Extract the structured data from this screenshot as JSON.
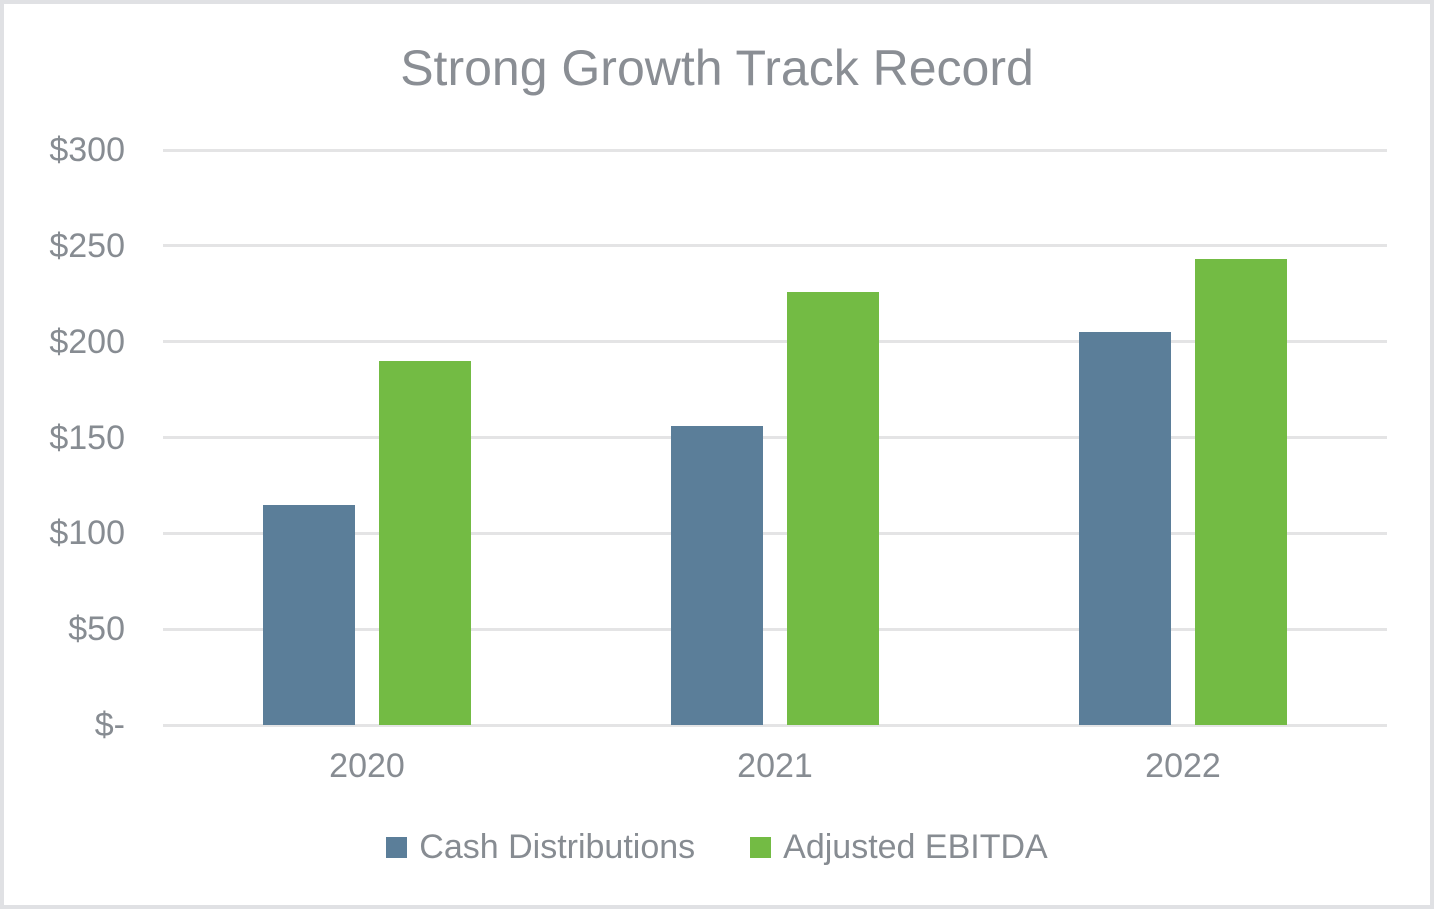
{
  "chart_data": {
    "type": "bar",
    "title": "Strong Growth Track Record",
    "categories": [
      "2020",
      "2021",
      "2022"
    ],
    "series": [
      {
        "name": "Cash Distributions",
        "color": "#5B7E99",
        "values": [
          115,
          156,
          205
        ]
      },
      {
        "name": "Adjusted EBITDA",
        "color": "#73BB44",
        "values": [
          190,
          226,
          243
        ]
      }
    ],
    "y_axis": {
      "min": 0,
      "max": 300,
      "step": 50,
      "tick_labels": [
        "$-",
        "$50",
        "$100",
        "$150",
        "$200",
        "$250",
        "$300"
      ]
    },
    "xlabel": "",
    "ylabel": "",
    "grid": true,
    "legend_position": "bottom",
    "colors": {
      "text": "#878C92",
      "title_text": "#8A8E94",
      "gridline": "#E4E4E5",
      "frame_border": "#E0E1E4"
    }
  }
}
